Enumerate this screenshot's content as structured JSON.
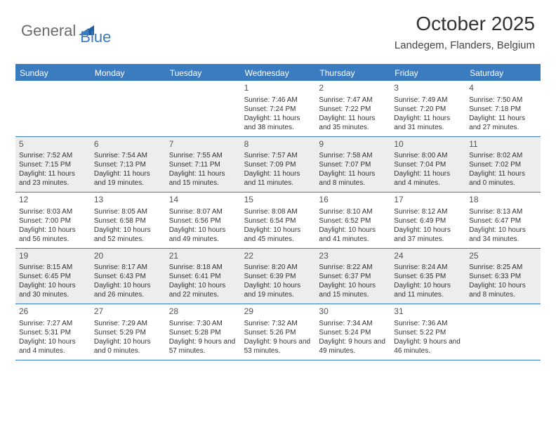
{
  "logo": {
    "text1": "General",
    "text2": "Blue"
  },
  "title": "October 2025",
  "location": "Landegem, Flanders, Belgium",
  "colors": {
    "header_bg": "#3b7bbf",
    "header_text": "#ffffff",
    "shaded_bg": "#ededed",
    "border": "#3b7bbf",
    "logo_gray": "#6b6b6b",
    "logo_blue": "#3b7bbf"
  },
  "day_names": [
    "Sunday",
    "Monday",
    "Tuesday",
    "Wednesday",
    "Thursday",
    "Friday",
    "Saturday"
  ],
  "weeks": [
    [
      {
        "n": "",
        "sr": "",
        "ss": "",
        "dl": "",
        "shaded": false
      },
      {
        "n": "",
        "sr": "",
        "ss": "",
        "dl": "",
        "shaded": false
      },
      {
        "n": "",
        "sr": "",
        "ss": "",
        "dl": "",
        "shaded": false
      },
      {
        "n": "1",
        "sr": "Sunrise: 7:46 AM",
        "ss": "Sunset: 7:24 PM",
        "dl": "Daylight: 11 hours and 38 minutes.",
        "shaded": false
      },
      {
        "n": "2",
        "sr": "Sunrise: 7:47 AM",
        "ss": "Sunset: 7:22 PM",
        "dl": "Daylight: 11 hours and 35 minutes.",
        "shaded": false
      },
      {
        "n": "3",
        "sr": "Sunrise: 7:49 AM",
        "ss": "Sunset: 7:20 PM",
        "dl": "Daylight: 11 hours and 31 minutes.",
        "shaded": false
      },
      {
        "n": "4",
        "sr": "Sunrise: 7:50 AM",
        "ss": "Sunset: 7:18 PM",
        "dl": "Daylight: 11 hours and 27 minutes.",
        "shaded": false
      }
    ],
    [
      {
        "n": "5",
        "sr": "Sunrise: 7:52 AM",
        "ss": "Sunset: 7:15 PM",
        "dl": "Daylight: 11 hours and 23 minutes.",
        "shaded": true
      },
      {
        "n": "6",
        "sr": "Sunrise: 7:54 AM",
        "ss": "Sunset: 7:13 PM",
        "dl": "Daylight: 11 hours and 19 minutes.",
        "shaded": true
      },
      {
        "n": "7",
        "sr": "Sunrise: 7:55 AM",
        "ss": "Sunset: 7:11 PM",
        "dl": "Daylight: 11 hours and 15 minutes.",
        "shaded": true
      },
      {
        "n": "8",
        "sr": "Sunrise: 7:57 AM",
        "ss": "Sunset: 7:09 PM",
        "dl": "Daylight: 11 hours and 11 minutes.",
        "shaded": true
      },
      {
        "n": "9",
        "sr": "Sunrise: 7:58 AM",
        "ss": "Sunset: 7:07 PM",
        "dl": "Daylight: 11 hours and 8 minutes.",
        "shaded": true
      },
      {
        "n": "10",
        "sr": "Sunrise: 8:00 AM",
        "ss": "Sunset: 7:04 PM",
        "dl": "Daylight: 11 hours and 4 minutes.",
        "shaded": true
      },
      {
        "n": "11",
        "sr": "Sunrise: 8:02 AM",
        "ss": "Sunset: 7:02 PM",
        "dl": "Daylight: 11 hours and 0 minutes.",
        "shaded": true
      }
    ],
    [
      {
        "n": "12",
        "sr": "Sunrise: 8:03 AM",
        "ss": "Sunset: 7:00 PM",
        "dl": "Daylight: 10 hours and 56 minutes.",
        "shaded": false
      },
      {
        "n": "13",
        "sr": "Sunrise: 8:05 AM",
        "ss": "Sunset: 6:58 PM",
        "dl": "Daylight: 10 hours and 52 minutes.",
        "shaded": false
      },
      {
        "n": "14",
        "sr": "Sunrise: 8:07 AM",
        "ss": "Sunset: 6:56 PM",
        "dl": "Daylight: 10 hours and 49 minutes.",
        "shaded": false
      },
      {
        "n": "15",
        "sr": "Sunrise: 8:08 AM",
        "ss": "Sunset: 6:54 PM",
        "dl": "Daylight: 10 hours and 45 minutes.",
        "shaded": false
      },
      {
        "n": "16",
        "sr": "Sunrise: 8:10 AM",
        "ss": "Sunset: 6:52 PM",
        "dl": "Daylight: 10 hours and 41 minutes.",
        "shaded": false
      },
      {
        "n": "17",
        "sr": "Sunrise: 8:12 AM",
        "ss": "Sunset: 6:49 PM",
        "dl": "Daylight: 10 hours and 37 minutes.",
        "shaded": false
      },
      {
        "n": "18",
        "sr": "Sunrise: 8:13 AM",
        "ss": "Sunset: 6:47 PM",
        "dl": "Daylight: 10 hours and 34 minutes.",
        "shaded": false
      }
    ],
    [
      {
        "n": "19",
        "sr": "Sunrise: 8:15 AM",
        "ss": "Sunset: 6:45 PM",
        "dl": "Daylight: 10 hours and 30 minutes.",
        "shaded": true
      },
      {
        "n": "20",
        "sr": "Sunrise: 8:17 AM",
        "ss": "Sunset: 6:43 PM",
        "dl": "Daylight: 10 hours and 26 minutes.",
        "shaded": true
      },
      {
        "n": "21",
        "sr": "Sunrise: 8:18 AM",
        "ss": "Sunset: 6:41 PM",
        "dl": "Daylight: 10 hours and 22 minutes.",
        "shaded": true
      },
      {
        "n": "22",
        "sr": "Sunrise: 8:20 AM",
        "ss": "Sunset: 6:39 PM",
        "dl": "Daylight: 10 hours and 19 minutes.",
        "shaded": true
      },
      {
        "n": "23",
        "sr": "Sunrise: 8:22 AM",
        "ss": "Sunset: 6:37 PM",
        "dl": "Daylight: 10 hours and 15 minutes.",
        "shaded": true
      },
      {
        "n": "24",
        "sr": "Sunrise: 8:24 AM",
        "ss": "Sunset: 6:35 PM",
        "dl": "Daylight: 10 hours and 11 minutes.",
        "shaded": true
      },
      {
        "n": "25",
        "sr": "Sunrise: 8:25 AM",
        "ss": "Sunset: 6:33 PM",
        "dl": "Daylight: 10 hours and 8 minutes.",
        "shaded": true
      }
    ],
    [
      {
        "n": "26",
        "sr": "Sunrise: 7:27 AM",
        "ss": "Sunset: 5:31 PM",
        "dl": "Daylight: 10 hours and 4 minutes.",
        "shaded": false
      },
      {
        "n": "27",
        "sr": "Sunrise: 7:29 AM",
        "ss": "Sunset: 5:29 PM",
        "dl": "Daylight: 10 hours and 0 minutes.",
        "shaded": false
      },
      {
        "n": "28",
        "sr": "Sunrise: 7:30 AM",
        "ss": "Sunset: 5:28 PM",
        "dl": "Daylight: 9 hours and 57 minutes.",
        "shaded": false
      },
      {
        "n": "29",
        "sr": "Sunrise: 7:32 AM",
        "ss": "Sunset: 5:26 PM",
        "dl": "Daylight: 9 hours and 53 minutes.",
        "shaded": false
      },
      {
        "n": "30",
        "sr": "Sunrise: 7:34 AM",
        "ss": "Sunset: 5:24 PM",
        "dl": "Daylight: 9 hours and 49 minutes.",
        "shaded": false
      },
      {
        "n": "31",
        "sr": "Sunrise: 7:36 AM",
        "ss": "Sunset: 5:22 PM",
        "dl": "Daylight: 9 hours and 46 minutes.",
        "shaded": false
      },
      {
        "n": "",
        "sr": "",
        "ss": "",
        "dl": "",
        "shaded": false
      }
    ]
  ]
}
